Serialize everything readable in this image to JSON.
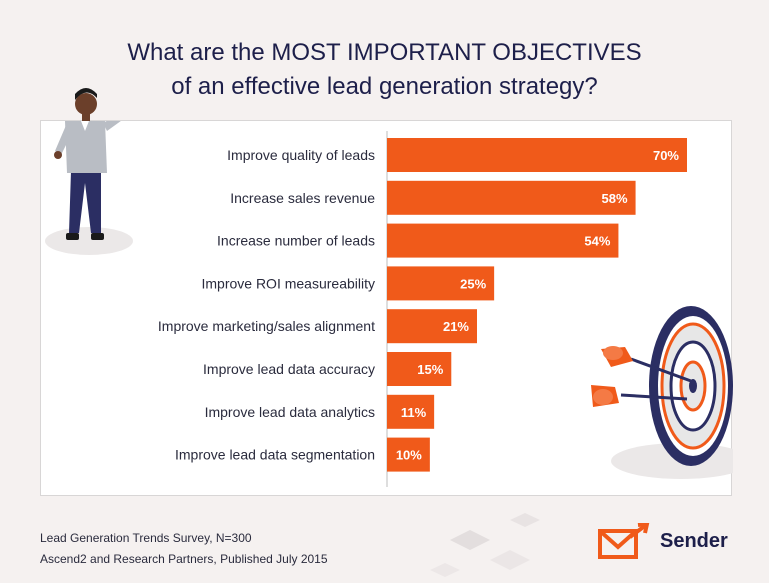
{
  "title": {
    "line1": "What are the MOST IMPORTANT OBJECTIVES",
    "line2": "of an effective lead generation strategy?"
  },
  "chart_data": {
    "type": "bar",
    "orientation": "horizontal",
    "categories": [
      "Improve quality of leads",
      "Increase sales revenue",
      "Increase number of leads",
      "Improve ROI measureability",
      "Improve marketing/sales alignment",
      "Improve lead data accuracy",
      "Improve lead data analytics",
      "Improve lead data segmentation"
    ],
    "values": [
      70,
      58,
      54,
      25,
      21,
      15,
      11,
      10
    ],
    "value_labels": [
      "70%",
      "58%",
      "54%",
      "25%",
      "21%",
      "15%",
      "11%",
      "10%"
    ],
    "title": "What are the MOST IMPORTANT OBJECTIVES of an effective lead generation strategy?",
    "xlim": [
      0,
      70
    ],
    "grid": false,
    "bar_color": "#f05a1a"
  },
  "source": {
    "line1": "Lead Generation Trends Survey, N=300",
    "line2": "Ascend2 and Research Partners, Published July 2015"
  },
  "brand": {
    "name": "Sender",
    "icon": "sender-envelope-icon",
    "color": "#f05a1a"
  },
  "illustrations": {
    "person": "person-throwing-dart-icon",
    "dartboard": "dartboard-icon"
  }
}
